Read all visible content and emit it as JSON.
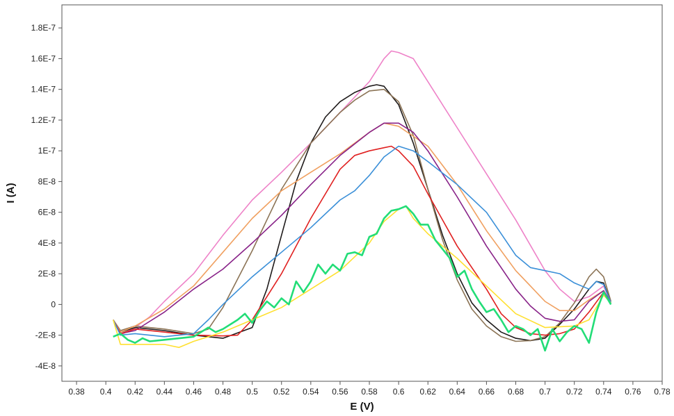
{
  "chart_data": {
    "type": "line",
    "title": "",
    "xlabel": "E (V)",
    "ylabel": "I (A)",
    "xlim": [
      0.37,
      0.78
    ],
    "ylim": [
      -5e-08,
      1.95e-07
    ],
    "grid": false,
    "legend": "none",
    "x_ticks": [
      0.38,
      0.4,
      0.42,
      0.44,
      0.46,
      0.48,
      0.5,
      0.52,
      0.54,
      0.56,
      0.58,
      0.6,
      0.62,
      0.64,
      0.66,
      0.68,
      0.7,
      0.72,
      0.74,
      0.76,
      0.78
    ],
    "x_tick_labels": [
      "0.38",
      "0.4",
      "0.42",
      "0.44",
      "0.46",
      "0.48",
      "0.5",
      "0.52",
      "0.54",
      "0.56",
      "0.58",
      "0.6",
      "0.62",
      "0.64",
      "0.66",
      "0.68",
      "0.7",
      "0.72",
      "0.74",
      "0.76",
      "0.78"
    ],
    "y_ticks": [
      -4e-08,
      -2e-08,
      0,
      2e-08,
      4e-08,
      6e-08,
      8e-08,
      1e-07,
      1.2e-07,
      1.4e-07,
      1.6e-07,
      1.8e-07
    ],
    "y_tick_labels": [
      "-4E-8",
      "-2E-8",
      "0",
      "2E-8",
      "4E-8",
      "6E-8",
      "8E-8",
      "1E-7",
      "1.2E-7",
      "1.4E-7",
      "1.6E-7",
      "1.8E-7"
    ],
    "series": [
      {
        "color": "#ee82c8",
        "points": [
          [
            0.405,
            -1e-08
          ],
          [
            0.41,
            -2e-08
          ],
          [
            0.42,
            -1.5e-08
          ],
          [
            0.43,
            -8e-09
          ],
          [
            0.44,
            2e-09
          ],
          [
            0.46,
            2e-08
          ],
          [
            0.48,
            4.5e-08
          ],
          [
            0.5,
            6.8e-08
          ],
          [
            0.52,
            8.6e-08
          ],
          [
            0.54,
            1.05e-07
          ],
          [
            0.56,
            1.25e-07
          ],
          [
            0.58,
            1.45e-07
          ],
          [
            0.59,
            1.6e-07
          ],
          [
            0.595,
            1.65e-07
          ],
          [
            0.6,
            1.64e-07
          ],
          [
            0.61,
            1.6e-07
          ],
          [
            0.62,
            1.45e-07
          ],
          [
            0.64,
            1.15e-07
          ],
          [
            0.66,
            8.5e-08
          ],
          [
            0.68,
            5.5e-08
          ],
          [
            0.7,
            2.2e-08
          ],
          [
            0.71,
            1e-08
          ],
          [
            0.72,
            2e-09
          ],
          [
            0.73,
            5e-09
          ],
          [
            0.74,
            1.2e-08
          ],
          [
            0.745,
            1e-09
          ]
        ]
      },
      {
        "color": "#1e1a1a",
        "points": [
          [
            0.405,
            -1e-08
          ],
          [
            0.41,
            -1.8e-08
          ],
          [
            0.42,
            -1.5e-08
          ],
          [
            0.44,
            -1.7e-08
          ],
          [
            0.46,
            -2e-08
          ],
          [
            0.48,
            -2.2e-08
          ],
          [
            0.5,
            -1.5e-08
          ],
          [
            0.51,
            1e-08
          ],
          [
            0.52,
            4.5e-08
          ],
          [
            0.53,
            8e-08
          ],
          [
            0.54,
            1.05e-07
          ],
          [
            0.55,
            1.22e-07
          ],
          [
            0.56,
            1.32e-07
          ],
          [
            0.57,
            1.38e-07
          ],
          [
            0.58,
            1.42e-07
          ],
          [
            0.585,
            1.43e-07
          ],
          [
            0.59,
            1.42e-07
          ],
          [
            0.6,
            1.3e-07
          ],
          [
            0.61,
            1.05e-07
          ],
          [
            0.62,
            7.5e-08
          ],
          [
            0.63,
            4.5e-08
          ],
          [
            0.64,
            2e-08
          ],
          [
            0.65,
            1e-09
          ],
          [
            0.66,
            -1e-08
          ],
          [
            0.67,
            -1.8e-08
          ],
          [
            0.68,
            -2.2e-08
          ],
          [
            0.69,
            -2.35e-08
          ],
          [
            0.7,
            -2.2e-08
          ],
          [
            0.71,
            -1.3e-08
          ],
          [
            0.72,
            -3e-09
          ],
          [
            0.73,
            1e-08
          ],
          [
            0.735,
            1.5e-08
          ],
          [
            0.74,
            1.4e-08
          ],
          [
            0.745,
            1e-09
          ]
        ]
      },
      {
        "color": "#8b7355",
        "points": [
          [
            0.405,
            -1e-08
          ],
          [
            0.41,
            -1.7e-08
          ],
          [
            0.42,
            -1.4e-08
          ],
          [
            0.44,
            -1.6e-08
          ],
          [
            0.46,
            -1.9e-08
          ],
          [
            0.47,
            -1.6e-08
          ],
          [
            0.48,
            -2e-09
          ],
          [
            0.5,
            3.5e-08
          ],
          [
            0.52,
            7.5e-08
          ],
          [
            0.54,
            1.05e-07
          ],
          [
            0.56,
            1.25e-07
          ],
          [
            0.57,
            1.33e-07
          ],
          [
            0.58,
            1.39e-07
          ],
          [
            0.59,
            1.4e-07
          ],
          [
            0.6,
            1.32e-07
          ],
          [
            0.61,
            1.1e-07
          ],
          [
            0.62,
            7.5e-08
          ],
          [
            0.63,
            4.2e-08
          ],
          [
            0.64,
            1.6e-08
          ],
          [
            0.65,
            -3e-09
          ],
          [
            0.66,
            -1.4e-08
          ],
          [
            0.67,
            -2.1e-08
          ],
          [
            0.68,
            -2.4e-08
          ],
          [
            0.69,
            -2.35e-08
          ],
          [
            0.7,
            -2.1e-08
          ],
          [
            0.71,
            -1.2e-08
          ],
          [
            0.72,
            1e-09
          ],
          [
            0.73,
            1.8e-08
          ],
          [
            0.735,
            2.3e-08
          ],
          [
            0.74,
            1.8e-08
          ],
          [
            0.745,
            2e-09
          ]
        ]
      },
      {
        "color": "#f0a060",
        "points": [
          [
            0.405,
            -1e-08
          ],
          [
            0.41,
            -1.8e-08
          ],
          [
            0.42,
            -1.4e-08
          ],
          [
            0.44,
            -3e-09
          ],
          [
            0.46,
            1.2e-08
          ],
          [
            0.48,
            3.4e-08
          ],
          [
            0.5,
            5.6e-08
          ],
          [
            0.52,
            7.4e-08
          ],
          [
            0.54,
            8.6e-08
          ],
          [
            0.56,
            9.8e-08
          ],
          [
            0.58,
            1.12e-07
          ],
          [
            0.59,
            1.18e-07
          ],
          [
            0.6,
            1.16e-07
          ],
          [
            0.62,
            1.03e-07
          ],
          [
            0.64,
            7.8e-08
          ],
          [
            0.66,
            4.8e-08
          ],
          [
            0.68,
            2.2e-08
          ],
          [
            0.69,
            1.2e-08
          ],
          [
            0.7,
            2e-09
          ],
          [
            0.71,
            -4e-09
          ],
          [
            0.72,
            -4e-09
          ],
          [
            0.73,
            3e-09
          ],
          [
            0.74,
            9e-09
          ],
          [
            0.745,
            1e-09
          ]
        ]
      },
      {
        "color": "#882288",
        "points": [
          [
            0.405,
            -1e-08
          ],
          [
            0.41,
            -1.9e-08
          ],
          [
            0.42,
            -1.7e-08
          ],
          [
            0.44,
            -5e-09
          ],
          [
            0.46,
            1e-08
          ],
          [
            0.48,
            2.3e-08
          ],
          [
            0.5,
            4e-08
          ],
          [
            0.52,
            5.8e-08
          ],
          [
            0.54,
            7.8e-08
          ],
          [
            0.56,
            9.7e-08
          ],
          [
            0.58,
            1.12e-07
          ],
          [
            0.59,
            1.18e-07
          ],
          [
            0.6,
            1.18e-07
          ],
          [
            0.61,
            1.12e-07
          ],
          [
            0.62,
            1e-07
          ],
          [
            0.64,
            7e-08
          ],
          [
            0.66,
            3.8e-08
          ],
          [
            0.68,
            1e-08
          ],
          [
            0.69,
            -1e-09
          ],
          [
            0.7,
            -9e-09
          ],
          [
            0.71,
            -1.1e-08
          ],
          [
            0.72,
            -1e-08
          ],
          [
            0.73,
            2e-09
          ],
          [
            0.74,
            9e-09
          ],
          [
            0.745,
            1e-09
          ]
        ]
      },
      {
        "color": "#e02020",
        "points": [
          [
            0.405,
            -1e-08
          ],
          [
            0.41,
            -1.9e-08
          ],
          [
            0.42,
            -1.6e-08
          ],
          [
            0.44,
            -1.8e-08
          ],
          [
            0.46,
            -2e-08
          ],
          [
            0.48,
            -2.05e-08
          ],
          [
            0.49,
            -2e-08
          ],
          [
            0.5,
            -1e-08
          ],
          [
            0.52,
            2e-08
          ],
          [
            0.54,
            5.6e-08
          ],
          [
            0.56,
            8.8e-08
          ],
          [
            0.57,
            9.7e-08
          ],
          [
            0.58,
            1e-07
          ],
          [
            0.59,
            1.02e-07
          ],
          [
            0.595,
            1.03e-07
          ],
          [
            0.6,
            1e-07
          ],
          [
            0.61,
            9e-08
          ],
          [
            0.62,
            7.2e-08
          ],
          [
            0.64,
            3.8e-08
          ],
          [
            0.66,
            1e-08
          ],
          [
            0.67,
            -6e-09
          ],
          [
            0.68,
            -1.5e-08
          ],
          [
            0.69,
            -1.9e-08
          ],
          [
            0.7,
            -2e-08
          ],
          [
            0.71,
            -1.9e-08
          ],
          [
            0.72,
            -1.6e-08
          ],
          [
            0.73,
            -5e-09
          ],
          [
            0.74,
            8e-09
          ],
          [
            0.745,
            1e-09
          ]
        ]
      },
      {
        "color": "#3a8fd8",
        "points": [
          [
            0.405,
            -1e-08
          ],
          [
            0.41,
            -2e-08
          ],
          [
            0.42,
            -1.9e-08
          ],
          [
            0.44,
            -2.1e-08
          ],
          [
            0.46,
            -1.9e-08
          ],
          [
            0.47,
            -1e-08
          ],
          [
            0.48,
            0
          ],
          [
            0.5,
            1.8e-08
          ],
          [
            0.52,
            3.4e-08
          ],
          [
            0.54,
            5e-08
          ],
          [
            0.56,
            6.8e-08
          ],
          [
            0.57,
            7.4e-08
          ],
          [
            0.58,
            8.4e-08
          ],
          [
            0.59,
            9.6e-08
          ],
          [
            0.6,
            1.03e-07
          ],
          [
            0.61,
            1e-07
          ],
          [
            0.62,
            9.3e-08
          ],
          [
            0.64,
            7.8e-08
          ],
          [
            0.66,
            6e-08
          ],
          [
            0.67,
            4.6e-08
          ],
          [
            0.68,
            3.2e-08
          ],
          [
            0.69,
            2.4e-08
          ],
          [
            0.7,
            2.2e-08
          ],
          [
            0.71,
            2e-08
          ],
          [
            0.72,
            1.4e-08
          ],
          [
            0.73,
            1e-08
          ],
          [
            0.735,
            1.5e-08
          ],
          [
            0.74,
            1.3e-08
          ],
          [
            0.745,
            1e-09
          ]
        ]
      },
      {
        "color": "#ffe030",
        "points": [
          [
            0.405,
            -1e-08
          ],
          [
            0.41,
            -2.6e-08
          ],
          [
            0.42,
            -2.6e-08
          ],
          [
            0.44,
            -2.6e-08
          ],
          [
            0.45,
            -2.8e-08
          ],
          [
            0.46,
            -2.4e-08
          ],
          [
            0.48,
            -1.8e-08
          ],
          [
            0.5,
            -1e-08
          ],
          [
            0.52,
            -2e-09
          ],
          [
            0.54,
            1e-08
          ],
          [
            0.56,
            2.2e-08
          ],
          [
            0.58,
            4e-08
          ],
          [
            0.59,
            5.4e-08
          ],
          [
            0.6,
            6.2e-08
          ],
          [
            0.605,
            6.4e-08
          ],
          [
            0.61,
            5.6e-08
          ],
          [
            0.62,
            4.6e-08
          ],
          [
            0.64,
            3e-08
          ],
          [
            0.66,
            1.2e-08
          ],
          [
            0.68,
            -6e-09
          ],
          [
            0.7,
            -1.5e-08
          ],
          [
            0.72,
            -1.4e-08
          ],
          [
            0.73,
            -1e-08
          ],
          [
            0.74,
            6e-09
          ],
          [
            0.745,
            1e-09
          ]
        ]
      },
      {
        "color": "#22dd77",
        "points": [
          [
            0.405,
            -2.1e-08
          ],
          [
            0.41,
            -1.9e-08
          ],
          [
            0.415,
            -2.3e-08
          ],
          [
            0.42,
            -2.5e-08
          ],
          [
            0.425,
            -2.2e-08
          ],
          [
            0.43,
            -2.4e-08
          ],
          [
            0.44,
            -2.3e-08
          ],
          [
            0.45,
            -2.2e-08
          ],
          [
            0.46,
            -2.1e-08
          ],
          [
            0.47,
            -1.5e-08
          ],
          [
            0.475,
            -1.8e-08
          ],
          [
            0.48,
            -1.6e-08
          ],
          [
            0.49,
            -1e-08
          ],
          [
            0.495,
            -6e-09
          ],
          [
            0.5,
            -1.2e-08
          ],
          [
            0.505,
            -4e-09
          ],
          [
            0.51,
            2e-09
          ],
          [
            0.515,
            -2e-09
          ],
          [
            0.52,
            4e-09
          ],
          [
            0.525,
            0
          ],
          [
            0.53,
            1.5e-08
          ],
          [
            0.535,
            8e-09
          ],
          [
            0.54,
            1.5e-08
          ],
          [
            0.545,
            2.6e-08
          ],
          [
            0.55,
            2e-08
          ],
          [
            0.555,
            2.6e-08
          ],
          [
            0.56,
            2.2e-08
          ],
          [
            0.565,
            3.3e-08
          ],
          [
            0.57,
            3.4e-08
          ],
          [
            0.575,
            3.2e-08
          ],
          [
            0.58,
            4.4e-08
          ],
          [
            0.585,
            4.6e-08
          ],
          [
            0.59,
            5.6e-08
          ],
          [
            0.595,
            6.1e-08
          ],
          [
            0.6,
            6.2e-08
          ],
          [
            0.605,
            6.4e-08
          ],
          [
            0.61,
            5.9e-08
          ],
          [
            0.615,
            5.2e-08
          ],
          [
            0.62,
            5.2e-08
          ],
          [
            0.625,
            4.2e-08
          ],
          [
            0.63,
            3.6e-08
          ],
          [
            0.635,
            3e-08
          ],
          [
            0.64,
            1.8e-08
          ],
          [
            0.645,
            2.2e-08
          ],
          [
            0.65,
            1e-08
          ],
          [
            0.655,
            2e-09
          ],
          [
            0.66,
            -5e-09
          ],
          [
            0.665,
            -3e-09
          ],
          [
            0.67,
            -1e-08
          ],
          [
            0.675,
            -1.8e-08
          ],
          [
            0.68,
            -1.4e-08
          ],
          [
            0.685,
            -1.6e-08
          ],
          [
            0.69,
            -2e-08
          ],
          [
            0.695,
            -1.6e-08
          ],
          [
            0.7,
            -3e-08
          ],
          [
            0.705,
            -1.6e-08
          ],
          [
            0.71,
            -2.4e-08
          ],
          [
            0.715,
            -1.8e-08
          ],
          [
            0.72,
            -1.4e-08
          ],
          [
            0.725,
            -1.6e-08
          ],
          [
            0.73,
            -2.5e-08
          ],
          [
            0.735,
            -5e-09
          ],
          [
            0.74,
            8e-09
          ],
          [
            0.745,
            0
          ]
        ]
      }
    ]
  }
}
